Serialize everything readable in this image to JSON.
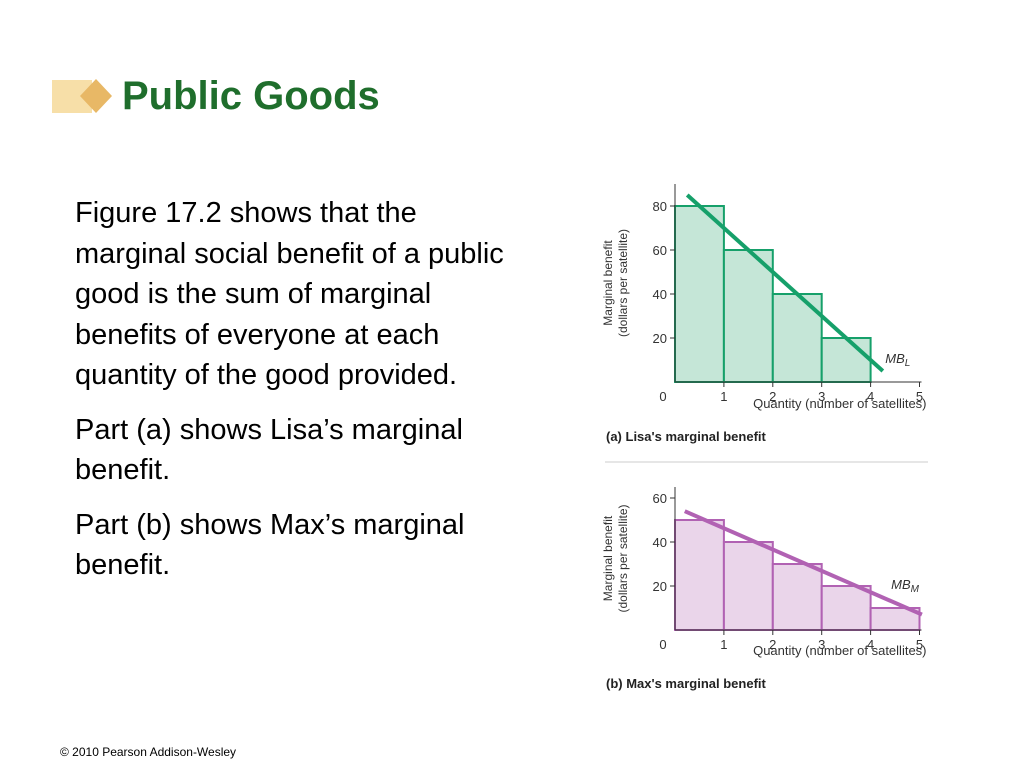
{
  "slide": {
    "title": "Public Goods",
    "paragraphs": [
      "Figure 17.2 shows that the marginal social benefit of a public good is the sum of marginal benefits of everyone at each quantity of the good provided.",
      "Part (a) shows Lisa’s marginal benefit.",
      "Part (b) shows Max’s marginal benefit."
    ],
    "footer": "© 2010 Pearson Addison-Wesley"
  },
  "colors": {
    "title": "#1f6e2c",
    "accent_diamond": "#e8b866",
    "accent_bar": "#f7dfa8",
    "lisa_fill": "#c5e6d7",
    "lisa_line": "#16a06a",
    "max_fill": "#ead5ea",
    "max_line": "#b162b3"
  },
  "chart_data": [
    {
      "type": "bar",
      "caption": "(a) Lisa's marginal benefit",
      "ylabel_line1": "Marginal benefit",
      "ylabel_line2": "(dollars per satellite)",
      "xlabel": "Quantity (number of satellites)",
      "categories": [
        1,
        2,
        3,
        4
      ],
      "values": [
        80,
        60,
        40,
        20
      ],
      "xticks": [
        "0",
        "1",
        "2",
        "3",
        "4",
        "5"
      ],
      "yticks": [
        20,
        40,
        60,
        80
      ],
      "xlim": [
        0,
        5
      ],
      "ylim": [
        0,
        90
      ],
      "grid": false,
      "line": {
        "label": "MB",
        "subscript": "L",
        "x": [
          0.25,
          4.25
        ],
        "y": [
          85,
          5
        ]
      }
    },
    {
      "type": "bar",
      "caption": "(b) Max's marginal benefit",
      "ylabel_line1": "Marginal benefit",
      "ylabel_line2": "(dollars per satellite)",
      "xlabel": "Quantity (number of satellites)",
      "categories": [
        1,
        2,
        3,
        4,
        5
      ],
      "values": [
        50,
        40,
        30,
        20,
        10
      ],
      "xticks": [
        "0",
        "1",
        "2",
        "3",
        "4",
        "5"
      ],
      "yticks": [
        20,
        40,
        60
      ],
      "xlim": [
        0,
        5
      ],
      "ylim": [
        0,
        65
      ],
      "grid": false,
      "line": {
        "label": "MB",
        "subscript": "M",
        "x": [
          0.2,
          5.05
        ],
        "y": [
          54,
          7
        ]
      }
    }
  ]
}
